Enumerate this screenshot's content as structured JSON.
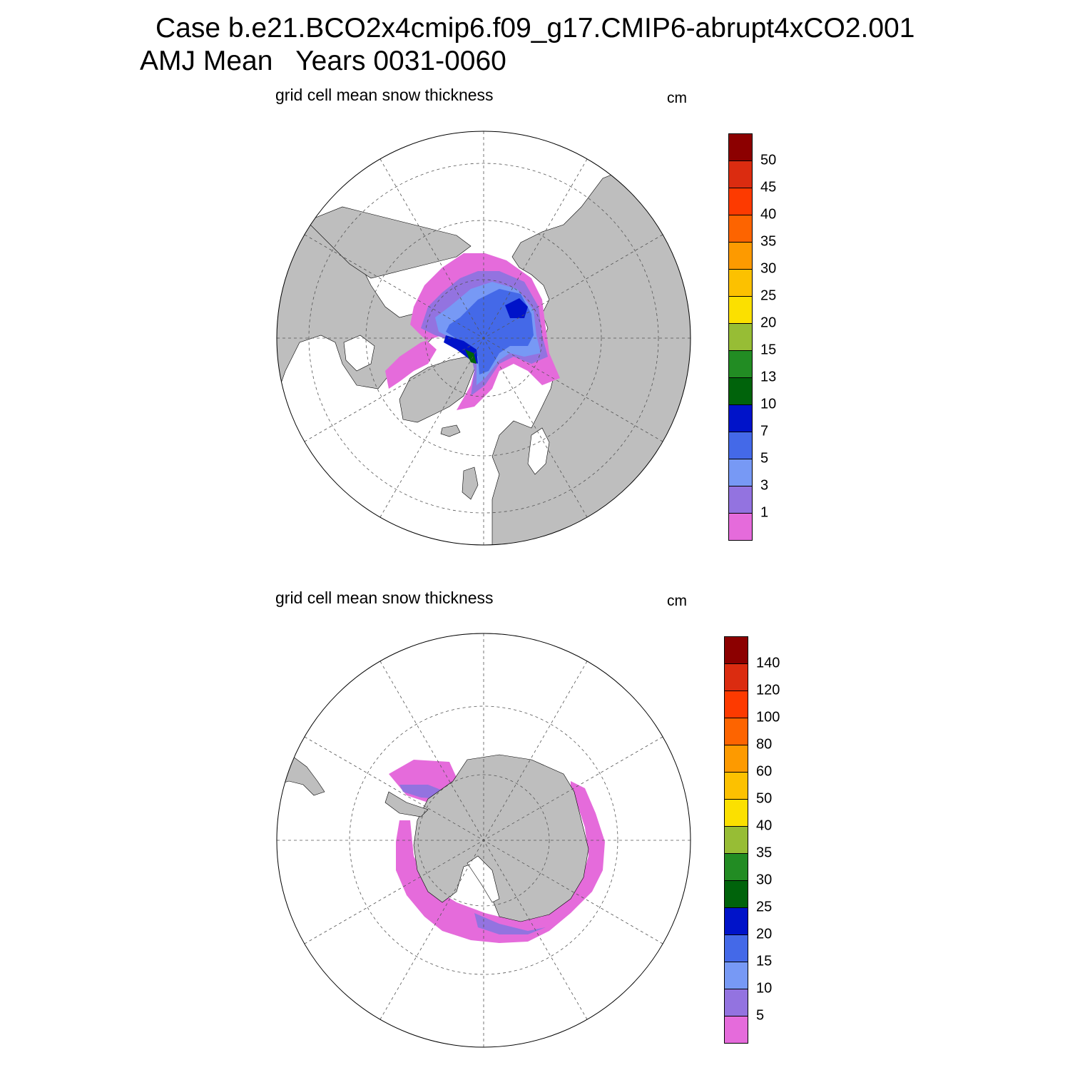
{
  "header": {
    "case_line": "Case b.e21.BCO2x4cmip6.f09_g17.CMIP6-abrupt4xCO2.001",
    "mean_line": "AMJ Mean   Years 0031-0060"
  },
  "panels": [
    {
      "id": "north",
      "title": "grid cell mean snow thickness",
      "units": "cm",
      "hemisphere": "Arctic (north polar stereographic)",
      "colorbar": {
        "colors": [
          "#e56bdb",
          "#9373e0",
          "#7799f5",
          "#4469e8",
          "#0013c9",
          "#00630b",
          "#228c23",
          "#97bd35",
          "#fbe000",
          "#fcc100",
          "#fd9a00",
          "#fd6400",
          "#fd3a00",
          "#db2c10",
          "#8c0000"
        ],
        "labels": [
          "1",
          "3",
          "5",
          "7",
          "10",
          "13",
          "15",
          "20",
          "25",
          "30",
          "35",
          "40",
          "45",
          "50"
        ]
      }
    },
    {
      "id": "south",
      "title": "grid cell mean snow thickness",
      "units": "cm",
      "hemisphere": "Antarctic (south polar stereographic)",
      "colorbar": {
        "colors": [
          "#e56bdb",
          "#9373e0",
          "#7799f5",
          "#4469e8",
          "#0013c9",
          "#00630b",
          "#228c23",
          "#97bd35",
          "#fbe000",
          "#fcc100",
          "#fd9a00",
          "#fd6400",
          "#fd3a00",
          "#db2c10",
          "#8c0000"
        ],
        "labels": [
          "5",
          "10",
          "15",
          "20",
          "25",
          "30",
          "35",
          "40",
          "50",
          "60",
          "80",
          "100",
          "120",
          "140"
        ]
      }
    }
  ],
  "colors": {
    "land": "#bebebe",
    "ocean": "#ffffff",
    "grid": "#555555"
  }
}
